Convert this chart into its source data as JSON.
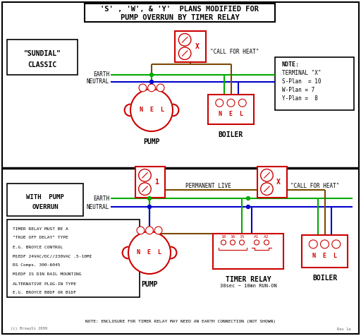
{
  "bg_color": "#ffffff",
  "red": "#cc0000",
  "green": "#00aa00",
  "blue": "#0000cc",
  "brown": "#7B4A00",
  "black": "#000000",
  "gray": "#666666",
  "title_line1": "'S' , 'W', & 'Y'  PLANS MODIFIED FOR",
  "title_line2": "PUMP OVERRUN BY TIMER RELAY",
  "sundial_line1": "\"SUNDIAL\"",
  "sundial_line2": "CLASSIC",
  "with_pump_line1": "WITH  PUMP",
  "with_pump_line2": "OVERRUN",
  "call_for_heat": "\"CALL FOR HEAT\"",
  "permanent_live": "PERMANENT LIVE",
  "earth_label": "EARTH",
  "neutral_label": "NEUTRAL",
  "pump_label": "PUMP",
  "boiler_label": "BOILER",
  "timer_relay_label": "TIMER RELAY",
  "timer_relay_sub": "30sec ~ 10mn RUN-ON",
  "note_title": "NOTE:",
  "note_terminal": "TERMINAL \"X\"",
  "note_s": "S-Plan  = 10",
  "note_w": "W-Plan = 7",
  "note_y": "Y-Plan =  8",
  "notes": [
    "TIMER RELAY MUST BE A",
    "\"TRUE OFF DELAY\" TYPE",
    "E.G. BROYCE CONTROL",
    "M1EDF 24VAC/DC//230VAC .5-10MI",
    "RS Comps. 300-6045",
    "M1EDF IS DIN RAIL MOUNTING",
    "ALTERNATIVE PLUG-IN TYPE",
    "E.G. BROYCE B8DF OR B1DF"
  ],
  "bottom_note": "NOTE: ENCLOSURE FOR TIMER RELAY MAY NEED AN EARTH CONNECTION (NOT SHOWN)",
  "copyright": "(c) BrowySi 2009",
  "rev": "Rev 1a",
  "nel": "N  E  L",
  "terminal_labels": [
    "18",
    "16",
    "15",
    "A1",
    "A2"
  ]
}
